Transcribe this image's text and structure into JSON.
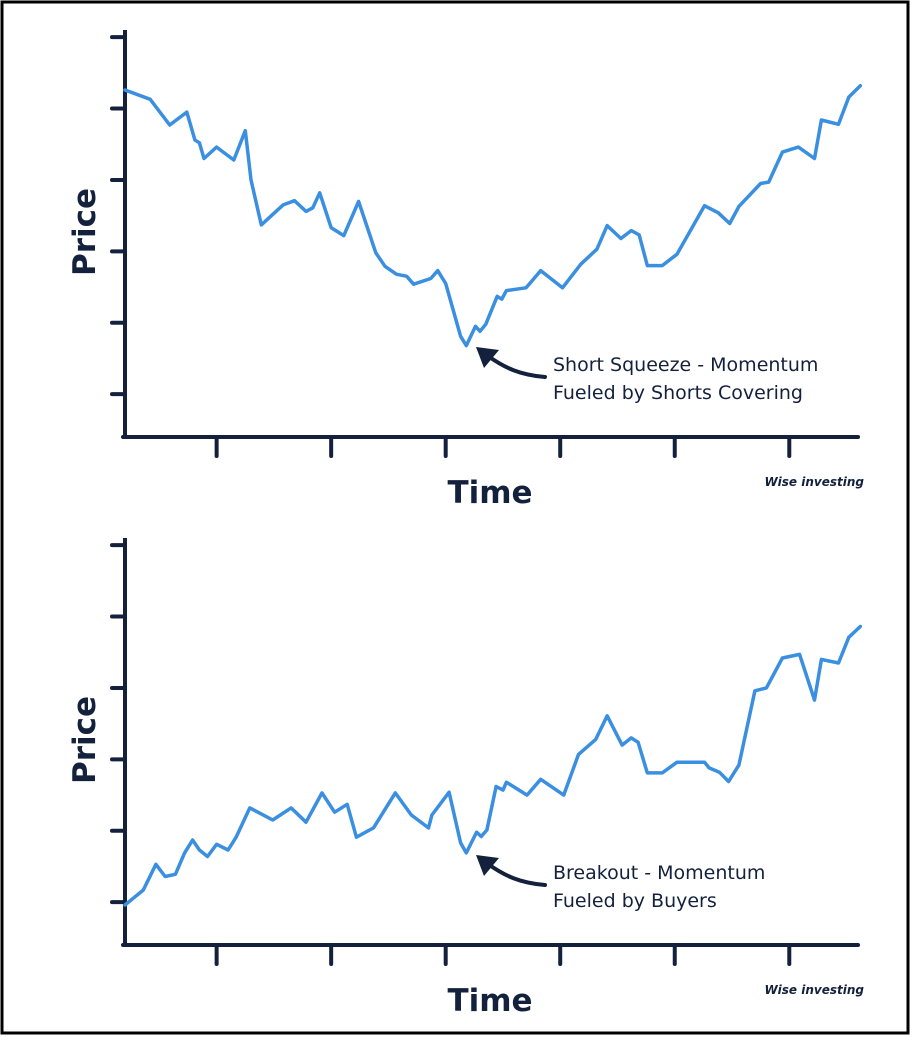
{
  "chart_data": [
    {
      "type": "line",
      "y_label": "Price",
      "x_label": "Time",
      "annotation": [
        "Short Squeeze - Momentum",
        "Fueled by Shorts Covering"
      ],
      "watermark": "Wise investing",
      "color": "#3b8fe0",
      "xlim": [
        0.2,
        6.6
      ],
      "xticks": [
        1,
        2,
        3,
        4,
        5,
        6
      ],
      "ylim": [
        0.4,
        6.1
      ],
      "yticks": [
        1,
        2,
        3,
        4,
        5,
        6
      ],
      "x": [
        0.2,
        0.42,
        0.59,
        0.74,
        0.81,
        0.85,
        0.89,
        1.0,
        1.15,
        1.25,
        1.3,
        1.39,
        1.58,
        1.68,
        1.78,
        1.84,
        1.9,
        2.0,
        2.11,
        2.24,
        2.39,
        2.47,
        2.57,
        2.66,
        2.72,
        2.87,
        2.93,
        3.0,
        3.13,
        3.18,
        3.26,
        3.3,
        3.35,
        3.45,
        3.49,
        3.53,
        3.7,
        3.74,
        3.83,
        4.02,
        4.18,
        4.32,
        4.41,
        4.53,
        4.62,
        4.69,
        4.76,
        4.89,
        5.02,
        5.26,
        5.38,
        5.48,
        5.56,
        5.75,
        5.82,
        5.94,
        6.08,
        6.22,
        6.28,
        6.43,
        6.52,
        6.62
      ],
      "values": [
        5.26,
        5.13,
        4.77,
        4.95,
        4.56,
        4.52,
        4.3,
        4.46,
        4.28,
        4.69,
        4.0,
        3.37,
        3.65,
        3.71,
        3.56,
        3.61,
        3.82,
        3.33,
        3.22,
        3.7,
        2.98,
        2.79,
        2.68,
        2.65,
        2.54,
        2.62,
        2.73,
        2.55,
        1.81,
        1.68,
        1.95,
        1.88,
        1.98,
        2.37,
        2.33,
        2.45,
        2.49,
        2.56,
        2.73,
        2.49,
        2.82,
        3.03,
        3.36,
        3.18,
        3.29,
        3.23,
        2.8,
        2.8,
        2.96,
        3.64,
        3.54,
        3.39,
        3.63,
        3.95,
        3.97,
        4.39,
        4.46,
        4.3,
        4.84,
        4.78,
        5.16,
        5.32
      ]
    },
    {
      "type": "line",
      "y_label": "Price",
      "x_label": "Time",
      "annotation": [
        "Breakout - Momentum",
        "Fueled by Buyers"
      ],
      "watermark": "Wise investing",
      "color": "#3b8fe0",
      "xlim": [
        0.2,
        6.6
      ],
      "xticks": [
        1,
        2,
        3,
        4,
        5,
        6
      ],
      "ylim": [
        0.4,
        6.1
      ],
      "yticks": [
        1,
        2,
        3,
        4,
        5,
        6
      ],
      "x": [
        0.2,
        0.36,
        0.47,
        0.55,
        0.64,
        0.72,
        0.79,
        0.85,
        0.92,
        1.0,
        1.1,
        1.17,
        1.29,
        1.49,
        1.65,
        1.78,
        1.92,
        2.03,
        2.14,
        2.22,
        2.37,
        2.56,
        2.7,
        2.85,
        2.88,
        3.03,
        3.13,
        3.18,
        3.27,
        3.31,
        3.36,
        3.44,
        3.5,
        3.53,
        3.71,
        3.83,
        4.03,
        4.16,
        4.31,
        4.41,
        4.54,
        4.62,
        4.68,
        4.76,
        4.89,
        5.02,
        5.26,
        5.3,
        5.39,
        5.47,
        5.56,
        5.7,
        5.8,
        5.94,
        6.09,
        6.22,
        6.28,
        6.43,
        6.52,
        6.62
      ],
      "values": [
        0.96,
        1.17,
        1.53,
        1.36,
        1.39,
        1.69,
        1.87,
        1.73,
        1.64,
        1.81,
        1.73,
        1.91,
        2.32,
        2.15,
        2.32,
        2.12,
        2.53,
        2.26,
        2.37,
        1.91,
        2.04,
        2.53,
        2.22,
        2.04,
        2.22,
        2.54,
        1.83,
        1.69,
        1.98,
        1.92,
        2.01,
        2.62,
        2.57,
        2.68,
        2.5,
        2.72,
        2.5,
        3.07,
        3.28,
        3.61,
        3.2,
        3.3,
        3.24,
        2.81,
        2.81,
        2.96,
        2.96,
        2.88,
        2.82,
        2.69,
        2.92,
        3.96,
        4.0,
        4.42,
        4.47,
        3.83,
        4.4,
        4.35,
        4.71,
        4.86
      ]
    }
  ]
}
